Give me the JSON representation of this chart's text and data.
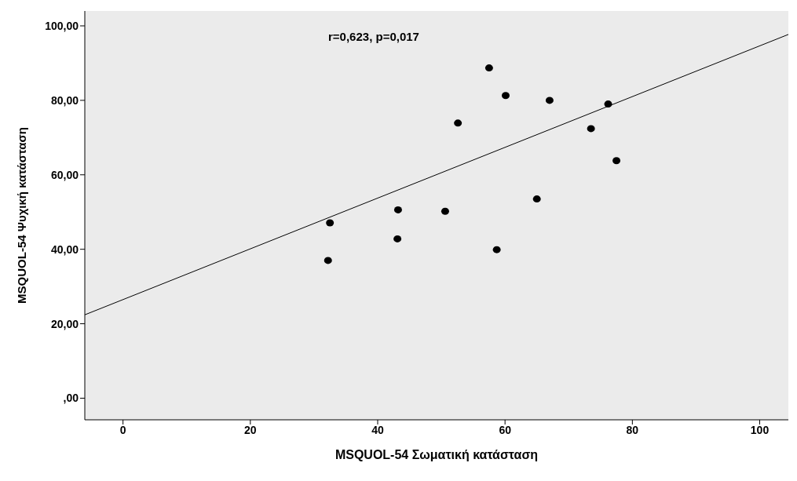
{
  "chart_data": {
    "type": "scatter",
    "xlabel": "MSQUOL-54 Σωματική κατάσταση",
    "ylabel": "MSQUOL-54 Ψυχική κατάσταση",
    "annotations": [
      "r=0,623, p=0,017"
    ],
    "xlim": [
      -6,
      104.5
    ],
    "ylim": [
      -5.8,
      104
    ],
    "xticks": [
      0,
      20,
      40,
      60,
      80,
      100
    ],
    "yticks": [
      {
        "value": 0,
        "label": ",00"
      },
      {
        "value": 20,
        "label": "20,00"
      },
      {
        "value": 40,
        "label": "40,00"
      },
      {
        "value": 60,
        "label": "60,00"
      },
      {
        "value": 80,
        "label": "80,00"
      },
      {
        "value": 100,
        "label": "100,00"
      }
    ],
    "marker": "circle",
    "grid": false,
    "legend": false,
    "series": [
      {
        "color": "#000000",
        "x": [
          32.2,
          32.5,
          43.2,
          43.1,
          50.6,
          52.6,
          57.5,
          60.1,
          58.7,
          65.0,
          67.0,
          73.5,
          76.2,
          77.5
        ],
        "values": [
          37.0,
          47.1,
          50.6,
          42.8,
          50.2,
          73.9,
          88.7,
          81.3,
          39.9,
          53.5,
          80.0,
          72.4,
          79.0,
          63.8
        ]
      },
      {
        "type": "line",
        "color": "#000000",
        "x": [
          -6,
          104.5
        ],
        "values": [
          22.4,
          97.7
        ],
        "marker": "none"
      }
    ]
  }
}
